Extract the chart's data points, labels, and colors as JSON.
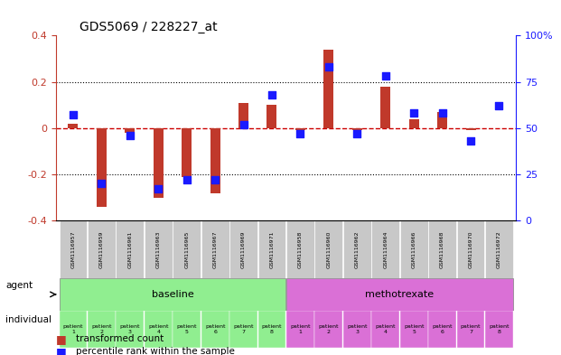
{
  "title": "GDS5069 / 228227_at",
  "samples": [
    "GSM1116957",
    "GSM1116959",
    "GSM1116961",
    "GSM1116963",
    "GSM1116965",
    "GSM1116967",
    "GSM1116969",
    "GSM1116971",
    "GSM1116958",
    "GSM1116960",
    "GSM1116962",
    "GSM1116964",
    "GSM1116966",
    "GSM1116968",
    "GSM1116970",
    "GSM1116972"
  ],
  "transformed_count": [
    0.02,
    -0.34,
    -0.02,
    -0.3,
    -0.21,
    -0.28,
    0.11,
    0.1,
    -0.01,
    0.34,
    -0.01,
    0.18,
    0.04,
    0.07,
    -0.01,
    0.0
  ],
  "percentile_rank": [
    57,
    20,
    46,
    17,
    22,
    22,
    52,
    68,
    47,
    83,
    47,
    78,
    58,
    58,
    43,
    62
  ],
  "ylim": [
    -0.4,
    0.4
  ],
  "y2lim": [
    0,
    100
  ],
  "yticks": [
    -0.4,
    -0.2,
    0,
    0.2,
    0.4
  ],
  "y2ticks": [
    0,
    25,
    50,
    75,
    100
  ],
  "bar_color": "#c0392b",
  "dot_color": "#1a1aff",
  "baseline_color": "#90ee90",
  "methotrexate_color": "#da70d6",
  "sample_bg_color": "#c8c8c8",
  "agent_label": "agent",
  "individual_label": "individual",
  "baseline_label": "baseline",
  "methotrexate_label": "methotrexate",
  "patients_baseline": [
    "patient\n1",
    "patient\n2",
    "patient\n3",
    "patient\n4",
    "patient\n5",
    "patient\n6",
    "patient\n7",
    "patient\n8"
  ],
  "patients_methotrexate": [
    "patient\n1",
    "patient\n2",
    "patient\n3",
    "patient\n4",
    "patient\n5",
    "patient\n6",
    "patient\n7",
    "patient\n8"
  ],
  "legend_bar": "transformed count",
  "legend_dot": "percentile rank within the sample",
  "hline_color": "#ff4444",
  "dotted_color": "#000000",
  "zero_line_color": "#cc0000"
}
